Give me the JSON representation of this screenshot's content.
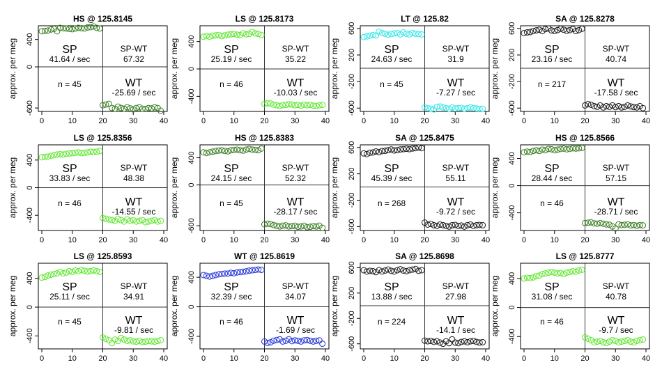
{
  "figure": {
    "ylabel": "approx. per meg",
    "x_ticks": [
      0,
      10,
      20,
      30,
      40
    ],
    "xlim": [
      0,
      40
    ]
  },
  "colors": {
    "HS": "#3a7d22",
    "LS": "#5ce62c",
    "LT": "#33e6e6",
    "SA": "#1a1a1a",
    "WT": "#2433d6",
    "axis": "#000000",
    "divider": "#333333"
  },
  "chart_data": [
    {
      "type": "scatter",
      "title": "HS @ 125.8145",
      "tank_type": "HS",
      "y_ticks": [
        400,
        0,
        -600
      ],
      "ylim": [
        -650,
        600
      ],
      "labels": {
        "sp_label": "SP",
        "sp_rate": "41.64 / sec",
        "sp_wt_label": "SP-WT",
        "sp_wt_value": "67.32",
        "n_label": "n = 45",
        "wt_label": "WT",
        "wt_rate": "-25.69 / sec"
      },
      "sp_values": [
        520,
        525,
        530,
        545,
        555,
        520,
        570,
        565,
        560,
        555,
        550,
        560,
        570,
        565,
        560,
        575,
        580,
        590,
        570,
        560
      ],
      "wt_values": [
        -560,
        -550,
        -540,
        -600,
        -610,
        -580,
        -600,
        -610,
        -590,
        -605,
        -620,
        -600,
        -590,
        -610,
        -615,
        -600,
        -605,
        -590,
        -600,
        -640
      ]
    },
    {
      "type": "scatter",
      "title": "LS @ 125.8173",
      "tank_type": "LS",
      "y_ticks": [
        400,
        0,
        -400
      ],
      "ylim": [
        -620,
        630
      ],
      "labels": {
        "sp_label": "SP",
        "sp_rate": "25.19 / sec",
        "sp_wt_label": "SP-WT",
        "sp_wt_value": "35.22",
        "n_label": "n = 46",
        "wt_label": "WT",
        "wt_rate": "-10.03 / sec"
      },
      "sp_values": [
        470,
        480,
        470,
        485,
        490,
        495,
        480,
        490,
        500,
        505,
        510,
        500,
        495,
        520,
        505,
        510,
        540,
        520,
        510,
        495
      ],
      "wt_values": [
        -510,
        -500,
        -505,
        -520,
        -530,
        -540,
        -530,
        -525,
        -515,
        -520,
        -530,
        -525,
        -535,
        -520,
        -530,
        -525,
        -535,
        -540,
        -530,
        -525
      ]
    },
    {
      "type": "scatter",
      "title": "LT @ 125.82",
      "tank_type": "LT",
      "y_ticks": [
        600,
        200,
        -200,
        -600
      ],
      "ylim": [
        -650,
        640
      ],
      "labels": {
        "sp_label": "SP",
        "sp_rate": "24.63 / sec",
        "sp_wt_label": "SP-WT",
        "sp_wt_value": "31.9",
        "n_label": "n = 45",
        "wt_label": "WT",
        "wt_rate": "-7.27 / sec"
      },
      "sp_values": [
        470,
        480,
        490,
        500,
        495,
        550,
        530,
        520,
        505,
        515,
        525,
        530,
        510,
        540,
        520,
        510,
        530,
        520,
        515,
        510
      ],
      "wt_values": [
        -590,
        -600,
        -610,
        -620,
        -580,
        -575,
        -590,
        -600,
        -610,
        -590,
        -605,
        -600,
        -595,
        -610,
        -600,
        -590,
        -600,
        -605,
        -615,
        -610
      ]
    },
    {
      "type": "scatter",
      "title": "SA @ 125.8278",
      "tank_type": "SA",
      "y_ticks": [
        600,
        200,
        -200,
        -600
      ],
      "ylim": [
        -650,
        640
      ],
      "labels": {
        "sp_label": "SP",
        "sp_rate": "23.16 / sec",
        "sp_wt_label": "SP-WT",
        "sp_wt_value": "40.74",
        "n_label": "n = 217",
        "wt_label": "WT",
        "wt_rate": "-17.58 / sec"
      },
      "sp_values": [
        530,
        540,
        545,
        560,
        570,
        580,
        560,
        590,
        600,
        570,
        560,
        575,
        595,
        580,
        565,
        575,
        590,
        560,
        575,
        595
      ],
      "wt_values": [
        -560,
        -540,
        -550,
        -570,
        -580,
        -560,
        -590,
        -570,
        -580,
        -560,
        -585,
        -570,
        -590,
        -580,
        -560,
        -575,
        -585,
        -590,
        -570,
        -600
      ]
    },
    {
      "type": "scatter",
      "title": "LS @ 125.8356",
      "tank_type": "LS",
      "y_ticks": [
        400,
        0,
        -400
      ],
      "ylim": [
        -620,
        620
      ],
      "labels": {
        "sp_label": "SP",
        "sp_rate": "33.83 / sec",
        "sp_wt_label": "SP-WT",
        "sp_wt_value": "48.38",
        "n_label": "n = 46",
        "wt_label": "WT",
        "wt_rate": "-14.55 / sec"
      },
      "sp_values": [
        440,
        445,
        450,
        460,
        470,
        480,
        485,
        480,
        490,
        495,
        500,
        505,
        510,
        500,
        505,
        510,
        520,
        515,
        520,
        530
      ],
      "wt_values": [
        -440,
        -450,
        -460,
        -470,
        -480,
        -450,
        -470,
        -490,
        -460,
        -480,
        -470,
        -490,
        -480,
        -470,
        -500,
        -490,
        -480,
        -470,
        -490,
        -480
      ]
    },
    {
      "type": "scatter",
      "title": "HS @ 125.8383",
      "tank_type": "HS",
      "y_ticks": [
        400,
        0,
        -600
      ],
      "ylim": [
        -670,
        590
      ],
      "labels": {
        "sp_label": "SP",
        "sp_rate": "24.15 / sec",
        "sp_wt_label": "SP-WT",
        "sp_wt_value": "52.32",
        "n_label": "n = 45",
        "wt_label": "WT",
        "wt_rate": "-28.17 / sec"
      },
      "sp_values": [
        480,
        470,
        480,
        490,
        500,
        505,
        510,
        500,
        495,
        510,
        515,
        520,
        510,
        505,
        520,
        530,
        520,
        515,
        510,
        535
      ],
      "wt_values": [
        -580,
        -570,
        -575,
        -590,
        -600,
        -610,
        -600,
        -595,
        -610,
        -605,
        -600,
        -615,
        -610,
        -600,
        -620,
        -615,
        -605,
        -610,
        -600,
        -630
      ]
    },
    {
      "type": "scatter",
      "title": "SA @ 125.8475",
      "tank_type": "SA",
      "y_ticks": [
        600,
        200,
        -200,
        -600
      ],
      "ylim": [
        -660,
        640
      ],
      "labels": {
        "sp_label": "SP",
        "sp_rate": "45.39 / sec",
        "sp_wt_label": "SP-WT",
        "sp_wt_value": "55.11",
        "n_label": "n = 268",
        "wt_label": "WT",
        "wt_rate": "-9.72 / sec"
      },
      "sp_values": [
        510,
        500,
        520,
        525,
        540,
        530,
        545,
        550,
        560,
        570,
        555,
        560,
        570,
        575,
        580,
        575,
        585,
        590,
        600,
        590
      ],
      "wt_values": [
        -540,
        -570,
        -560,
        -580,
        -590,
        -570,
        -580,
        -590,
        -600,
        -580,
        -575,
        -590,
        -585,
        -600,
        -580,
        -570,
        -590,
        -580,
        -575,
        -580
      ]
    },
    {
      "type": "scatter",
      "title": "HS @ 125.8566",
      "tank_type": "HS",
      "y_ticks": [
        400,
        0,
        -400
      ],
      "ylim": [
        -660,
        600
      ],
      "labels": {
        "sp_label": "SP",
        "sp_rate": "28.44 / sec",
        "sp_wt_label": "SP-WT",
        "sp_wt_value": "57.15",
        "n_label": "n = 46",
        "wt_label": "WT",
        "wt_rate": "-28.71 / sec"
      },
      "sp_values": [
        490,
        500,
        495,
        510,
        520,
        510,
        530,
        520,
        540,
        535,
        520,
        530,
        540,
        545,
        535,
        540,
        550,
        545,
        550,
        555
      ],
      "wt_values": [
        -550,
        -545,
        -540,
        -555,
        -560,
        -550,
        -560,
        -570,
        -575,
        -600,
        -630,
        -570,
        -580,
        -575,
        -570,
        -585,
        -580,
        -590,
        -580,
        -585
      ]
    },
    {
      "type": "scatter",
      "title": "LS @ 125.8593",
      "tank_type": "LS",
      "y_ticks": [
        400,
        0,
        -400
      ],
      "ylim": [
        -580,
        610
      ],
      "labels": {
        "sp_label": "SP",
        "sp_rate": "25.11 / sec",
        "sp_wt_label": "SP-WT",
        "sp_wt_value": "34.91",
        "n_label": "n = 45",
        "wt_label": "WT",
        "wt_rate": "-9.81 / sec"
      },
      "sp_values": [
        410,
        420,
        440,
        450,
        460,
        470,
        490,
        470,
        480,
        500,
        490,
        510,
        500,
        515,
        505,
        495,
        500,
        510,
        500,
        490
      ],
      "wt_values": [
        -420,
        -440,
        -460,
        -500,
        -450,
        -470,
        -430,
        -450,
        -470,
        -460,
        -475,
        -480,
        -470,
        -485,
        -480,
        -470,
        -475,
        -480,
        -470,
        -460
      ]
    },
    {
      "type": "scatter",
      "title": "WT @ 125.8619",
      "tank_type": "WT",
      "y_ticks": [
        400,
        0,
        -400
      ],
      "ylim": [
        -570,
        590
      ],
      "labels": {
        "sp_label": "SP",
        "sp_rate": "32.39 / sec",
        "sp_wt_label": "SP-WT",
        "sp_wt_value": "34.07",
        "n_label": "n = 46",
        "wt_label": "WT",
        "wt_rate": "-1.69 / sec"
      },
      "sp_values": [
        430,
        420,
        410,
        420,
        430,
        440,
        445,
        450,
        450,
        460,
        455,
        465,
        470,
        475,
        480,
        490,
        495,
        500,
        505,
        500
      ],
      "wt_values": [
        -470,
        -490,
        -480,
        -460,
        -450,
        -440,
        -470,
        -460,
        -440,
        -465,
        -455,
        -460,
        -470,
        -455,
        -450,
        -460,
        -470,
        -460,
        -455,
        -500
      ]
    },
    {
      "type": "scatter",
      "title": "SA @ 125.8698",
      "tank_type": "SA",
      "y_ticks": [
        600,
        200,
        -200,
        -600
      ],
      "ylim": [
        -680,
        670
      ],
      "labels": {
        "sp_label": "SP",
        "sp_rate": "13.88 / sec",
        "sp_wt_label": "SP-WT",
        "sp_wt_value": "27.98",
        "n_label": "n = 224",
        "wt_label": "WT",
        "wt_rate": "-14.1 / sec"
      },
      "sp_values": [
        560,
        540,
        550,
        545,
        530,
        560,
        540,
        555,
        570,
        550,
        540,
        560,
        575,
        555,
        545,
        560,
        570,
        580,
        550,
        560
      ],
      "wt_values": [
        -550,
        -560,
        -555,
        -570,
        -560,
        -580,
        -600,
        -560,
        -590,
        -530,
        -580,
        -590,
        -570,
        -560,
        -575,
        -560,
        -555,
        -570,
        -580,
        -575
      ]
    },
    {
      "type": "scatter",
      "title": "LS @ 125.8777",
      "tank_type": "LS",
      "y_ticks": [
        400,
        0,
        -400
      ],
      "ylim": [
        -570,
        610
      ],
      "labels": {
        "sp_label": "SP",
        "sp_rate": "31.08 / sec",
        "sp_wt_label": "SP-WT",
        "sp_wt_value": "40.78",
        "n_label": "n = 46",
        "wt_label": "WT",
        "wt_rate": "-9.7 / sec"
      },
      "sp_values": [
        400,
        410,
        405,
        415,
        430,
        440,
        460,
        470,
        480,
        490,
        480,
        470,
        475,
        460,
        480,
        490,
        500,
        495,
        510,
        520
      ],
      "wt_values": [
        -410,
        -430,
        -450,
        -480,
        -470,
        -460,
        -480,
        -490,
        -470,
        -450,
        -460,
        -480,
        -470,
        -460,
        -450,
        -470,
        -480,
        -460,
        -450,
        -440
      ]
    }
  ]
}
